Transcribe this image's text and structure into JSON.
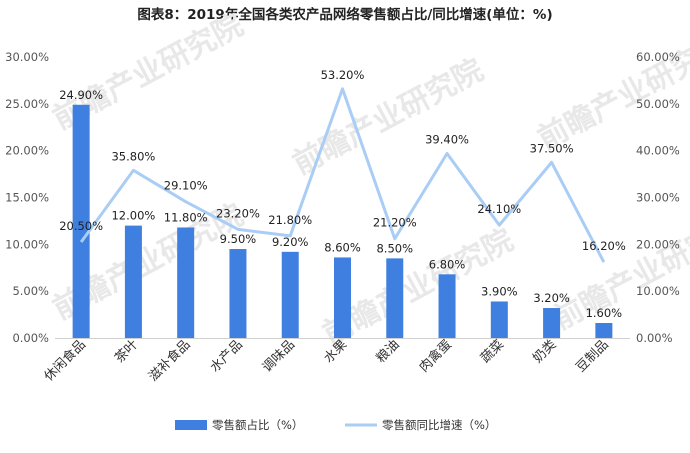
{
  "chart_data": {
    "type": "bar",
    "title": "图表8：2019年全国各类农产品网络零售额占比/同比增速(单位：%)",
    "categories": [
      "休闲食品",
      "茶叶",
      "滋补食品",
      "水产品",
      "调味品",
      "水果",
      "粮油",
      "肉禽蛋",
      "蔬菜",
      "奶类",
      "豆制品"
    ],
    "series": [
      {
        "name": "零售额占比（%）",
        "kind": "bar",
        "axis": "left",
        "color": "#3f7fe0",
        "values": [
          24.9,
          12.0,
          11.8,
          9.5,
          9.2,
          8.6,
          8.5,
          6.8,
          3.9,
          3.2,
          1.6
        ],
        "labels": [
          "24.90%",
          "12.00%",
          "11.80%",
          "9.50%",
          "9.20%",
          "8.60%",
          "8.50%",
          "6.80%",
          "3.90%",
          "3.20%",
          "1.60%"
        ]
      },
      {
        "name": "零售额同比增速（%）",
        "kind": "line",
        "axis": "right",
        "color": "#a9cdf5",
        "values": [
          20.5,
          35.8,
          29.1,
          23.2,
          21.8,
          53.2,
          21.2,
          39.4,
          24.1,
          37.5,
          16.2
        ],
        "labels": [
          "20.50%",
          "35.80%",
          "29.10%",
          "23.20%",
          "21.80%",
          "53.20%",
          "21.20%",
          "39.40%",
          "24.10%",
          "37.50%",
          "16.20%"
        ]
      }
    ],
    "y_left": {
      "range": [
        0,
        30
      ],
      "ticks": [
        "0.00%",
        "5.00%",
        "10.00%",
        "15.00%",
        "20.00%",
        "25.00%",
        "30.00%"
      ]
    },
    "y_right": {
      "range": [
        0,
        60
      ],
      "ticks": [
        "0.00%",
        "10.00%",
        "20.00%",
        "30.00%",
        "40.00%",
        "50.00%",
        "60.00%"
      ]
    },
    "grid": false,
    "legend": "bottom",
    "watermark": "前瞻产业研究院"
  }
}
